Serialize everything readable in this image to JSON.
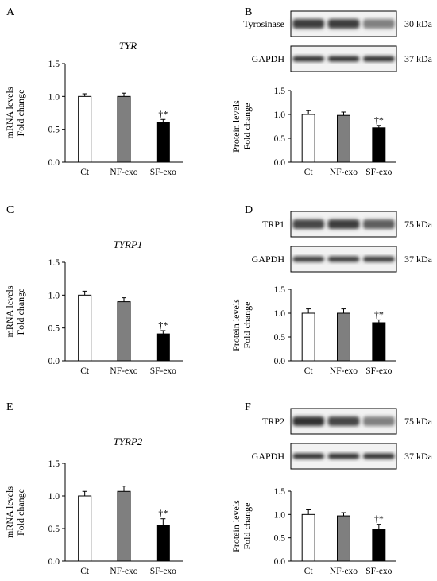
{
  "panels": [
    {
      "letter": "A",
      "kind": "mrna",
      "gene": "TYR",
      "ylabel": [
        "mRNA levels",
        "Fold change"
      ]
    },
    {
      "letter": "B",
      "kind": "protein",
      "ylabel": [
        "Protein levels",
        "Fold change"
      ],
      "blots": [
        {
          "label": "Tyrosinase",
          "kda": "30 kDa",
          "intensity": [
            0.85,
            0.85,
            0.55
          ]
        },
        {
          "label": "GAPDH",
          "kda": "37 kDa",
          "intensity": [
            0.9,
            0.9,
            0.9
          ]
        }
      ]
    },
    {
      "letter": "C",
      "kind": "mrna",
      "gene": "TYRP1",
      "ylabel": [
        "mRNA levels",
        "Fold change"
      ]
    },
    {
      "letter": "D",
      "kind": "protein",
      "ylabel": [
        "Protein levels",
        "Fold change"
      ],
      "blots": [
        {
          "label": "TRP1",
          "kda": "75 kDa",
          "intensity": [
            0.8,
            0.85,
            0.7
          ]
        },
        {
          "label": "GAPDH",
          "kda": "37 kDa",
          "intensity": [
            0.85,
            0.85,
            0.85
          ]
        }
      ]
    },
    {
      "letter": "E",
      "kind": "mrna",
      "gene": "TYRP2",
      "ylabel": [
        "mRNA levels",
        "Fold change"
      ]
    },
    {
      "letter": "F",
      "kind": "protein",
      "ylabel": [
        "Protein levels",
        "Fold change"
      ],
      "blots": [
        {
          "label": "TRP2",
          "kda": "75 kDa",
          "intensity": [
            0.9,
            0.8,
            0.55
          ]
        },
        {
          "label": "GAPDH",
          "kda": "37 kDa",
          "intensity": [
            0.9,
            0.9,
            0.9
          ]
        }
      ]
    }
  ],
  "colors": {
    "ct": "#ffffff",
    "nf": "#7f7f7f",
    "sf": "#000000"
  },
  "chart_data": [
    {
      "type": "bar",
      "panel": "A",
      "title": "TYR",
      "categories": [
        "Ct",
        "NF-exo",
        "SF-exo"
      ],
      "values": [
        1.0,
        1.0,
        0.61
      ],
      "errors": [
        0.04,
        0.05,
        0.04
      ],
      "significance": [
        "",
        "",
        "†*"
      ],
      "ylabel": "mRNA levels Fold change",
      "ylim": [
        0,
        1.5
      ],
      "yticks": [
        "0.0",
        "0.5",
        "1.0",
        "1.5"
      ]
    },
    {
      "type": "bar",
      "panel": "B",
      "title": "",
      "categories": [
        "Ct",
        "NF-exo",
        "SF-exo"
      ],
      "values": [
        1.0,
        0.98,
        0.72
      ],
      "errors": [
        0.08,
        0.07,
        0.05
      ],
      "significance": [
        "",
        "",
        "†*"
      ],
      "ylabel": "Protein levels Fold change",
      "ylim": [
        0,
        1.5
      ],
      "yticks": [
        "0.0",
        "0.5",
        "1.0",
        "1.5"
      ]
    },
    {
      "type": "bar",
      "panel": "C",
      "title": "TYRP1",
      "categories": [
        "Ct",
        "NF-exo",
        "SF-exo"
      ],
      "values": [
        1.0,
        0.9,
        0.41
      ],
      "errors": [
        0.06,
        0.06,
        0.05
      ],
      "significance": [
        "",
        "",
        "†*"
      ],
      "ylabel": "mRNA levels Fold change",
      "ylim": [
        0,
        1.5
      ],
      "yticks": [
        "0.0",
        "0.5",
        "1.0",
        "1.5"
      ]
    },
    {
      "type": "bar",
      "panel": "D",
      "title": "",
      "categories": [
        "Ct",
        "NF-exo",
        "SF-exo"
      ],
      "values": [
        1.0,
        1.0,
        0.8
      ],
      "errors": [
        0.09,
        0.09,
        0.06
      ],
      "significance": [
        "",
        "",
        "†*"
      ],
      "ylabel": "Protein levels Fold change",
      "ylim": [
        0,
        1.5
      ],
      "yticks": [
        "0.0",
        "0.5",
        "1.0",
        "1.5"
      ]
    },
    {
      "type": "bar",
      "panel": "E",
      "title": "TYRP2",
      "categories": [
        "Ct",
        "NF-exo",
        "SF-exo"
      ],
      "values": [
        1.0,
        1.07,
        0.55
      ],
      "errors": [
        0.07,
        0.08,
        0.1
      ],
      "significance": [
        "",
        "",
        "†*"
      ],
      "ylabel": "mRNA levels Fold change",
      "ylim": [
        0,
        1.5
      ],
      "yticks": [
        "0.0",
        "0.5",
        "1.0",
        "1.5"
      ]
    },
    {
      "type": "bar",
      "panel": "F",
      "title": "",
      "categories": [
        "Ct",
        "NF-exo",
        "SF-exo"
      ],
      "values": [
        1.0,
        0.97,
        0.69
      ],
      "errors": [
        0.1,
        0.07,
        0.1
      ],
      "significance": [
        "",
        "",
        "†*"
      ],
      "ylabel": "Protein levels Fold change",
      "ylim": [
        0,
        1.5
      ],
      "yticks": [
        "0.0",
        "0.5",
        "1.0",
        "1.5"
      ]
    }
  ]
}
